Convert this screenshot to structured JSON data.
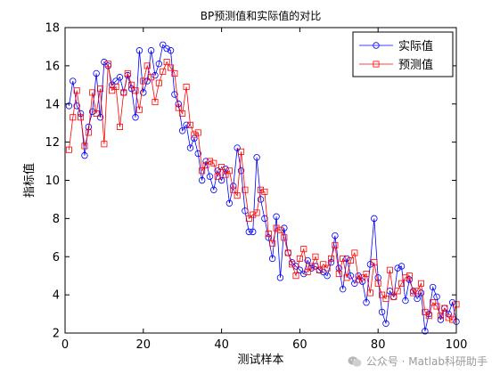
{
  "chart_data": {
    "type": "line",
    "title": "BP预测值和实际值的对比",
    "xlabel": "测试样本",
    "ylabel": "指标值",
    "xlim": [
      0,
      100
    ],
    "ylim": [
      2,
      18
    ],
    "xticks": [
      0,
      20,
      40,
      60,
      80,
      100
    ],
    "yticks": [
      2,
      4,
      6,
      8,
      10,
      12,
      14,
      16,
      18
    ],
    "legend_position": "top-right",
    "x": [
      1,
      2,
      3,
      4,
      5,
      6,
      7,
      8,
      9,
      10,
      11,
      12,
      13,
      14,
      15,
      16,
      17,
      18,
      19,
      20,
      21,
      22,
      23,
      24,
      25,
      26,
      27,
      28,
      29,
      30,
      31,
      32,
      33,
      34,
      35,
      36,
      37,
      38,
      39,
      40,
      41,
      42,
      43,
      44,
      45,
      46,
      47,
      48,
      49,
      50,
      51,
      52,
      53,
      54,
      55,
      56,
      57,
      58,
      59,
      60,
      61,
      62,
      63,
      64,
      65,
      66,
      67,
      68,
      69,
      70,
      71,
      72,
      73,
      74,
      75,
      76,
      77,
      78,
      79,
      80,
      81,
      82,
      83,
      84,
      85,
      86,
      87,
      88,
      89,
      90,
      91,
      92,
      93,
      94,
      95,
      96,
      97,
      98,
      99,
      100
    ],
    "series": [
      {
        "name": "实际值",
        "color": "#0000ff",
        "marker": "circle",
        "values": [
          13.9,
          15.2,
          13.9,
          13.5,
          11.3,
          12.8,
          13.6,
          15.6,
          13.3,
          16.2,
          16.0,
          15.0,
          15.2,
          15.4,
          14.6,
          15.5,
          14.8,
          13.3,
          16.8,
          14.6,
          15.2,
          16.8,
          15.5,
          16.1,
          17.1,
          16.9,
          16.8,
          14.5,
          14.0,
          12.6,
          12.9,
          11.7,
          12.2,
          11.4,
          10.0,
          11.0,
          10.2,
          9.5,
          10.5,
          10.0,
          10.6,
          8.8,
          9.7,
          11.7,
          10.5,
          8.4,
          7.3,
          7.3,
          11.2,
          9.0,
          8.0,
          7.0,
          5.9,
          8.1,
          4.9,
          7.5,
          6.2,
          5.7,
          5.5,
          5.3,
          5.1,
          5.8,
          5.4,
          5.5,
          5.3,
          5.2,
          5.0,
          5.7,
          7.1,
          5.4,
          4.3,
          5.9,
          5.0,
          4.6,
          5.0,
          4.7,
          3.6,
          5.6,
          8.0,
          4.9,
          3.1,
          2.5,
          4.2,
          3.9,
          5.4,
          5.5,
          3.7,
          4.8,
          4.2,
          3.8,
          4.1,
          2.1,
          3.0,
          4.4,
          3.9,
          2.7,
          3.3,
          3.0,
          3.6,
          2.6
        ]
      },
      {
        "name": "预测值",
        "color": "#ff0000",
        "marker": "square",
        "values": [
          11.6,
          13.3,
          14.7,
          13.3,
          11.8,
          12.5,
          14.6,
          13.5,
          14.8,
          11.9,
          16.1,
          14.7,
          14.9,
          12.8,
          14.6,
          15.6,
          15.0,
          14.7,
          13.7,
          15.2,
          16.0,
          15.4,
          14.1,
          15.1,
          15.7,
          16.2,
          15.9,
          15.6,
          13.8,
          13.5,
          14.9,
          12.9,
          12.4,
          12.5,
          10.5,
          10.8,
          11.0,
          10.9,
          10.2,
          10.7,
          10.3,
          10.5,
          9.5,
          9.2,
          11.5,
          9.5,
          8.0,
          8.2,
          8.3,
          9.5,
          9.4,
          7.2,
          6.7,
          7.5,
          7.4,
          7.0,
          6.2,
          5.6,
          5.0,
          5.9,
          6.4,
          5.2,
          5.5,
          6.0,
          5.3,
          5.6,
          5.4,
          5.9,
          6.6,
          5.1,
          5.9,
          4.9,
          5.8,
          6.2,
          4.8,
          4.9,
          5.1,
          4.1,
          5.7,
          4.6,
          4.0,
          3.8,
          5.3,
          3.9,
          4.2,
          4.6,
          4.9,
          5.0,
          4.1,
          4.2,
          4.6,
          3.1,
          2.9,
          3.6,
          3.4,
          2.9,
          3.3,
          2.8,
          2.7,
          3.5
        ]
      }
    ]
  },
  "watermark": {
    "text": "公众号 · Matlab科研助手"
  }
}
